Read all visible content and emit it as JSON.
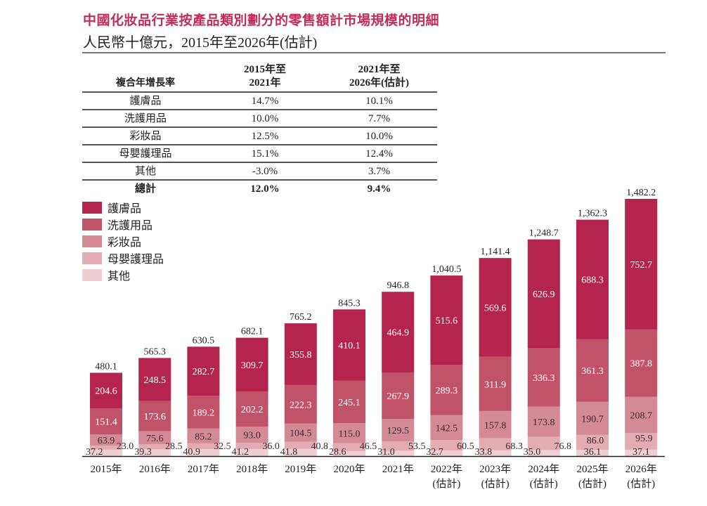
{
  "header": {
    "title": "中國化妝品行業按產品類別劃分的零售額計市場規模的明細",
    "subtitle": "人民幣十億元，2015年至2026年(估計)"
  },
  "cagr_table": {
    "header_label": "複合年增長率",
    "col1_line1": "2015年至",
    "col1_line2": "2021年",
    "col2_line1": "2021年至",
    "col2_line2": "2026年(估計)",
    "rows": [
      {
        "label": "護膚品",
        "c1": "14.7%",
        "c2": "10.1%"
      },
      {
        "label": "洗護用品",
        "c1": "10.0%",
        "c2": "7.7%"
      },
      {
        "label": "彩妝品",
        "c1": "12.5%",
        "c2": "10.0%"
      },
      {
        "label": "母嬰護理品",
        "c1": "15.1%",
        "c2": "12.4%"
      },
      {
        "label": "其他",
        "c1": "-3.0%",
        "c2": "3.7%"
      },
      {
        "label": "總計",
        "c1": "12.0%",
        "c2": "9.4%"
      }
    ]
  },
  "chart_data": {
    "type": "bar",
    "stacked": true,
    "title": "中國化妝品行業按產品類別劃分的零售額計市場規模的明細",
    "subtitle": "人民幣十億元，2015年至2026年(估計)",
    "xlabel": "",
    "ylabel": "人民幣十億元",
    "ylim": [
      0,
      1482.2
    ],
    "grid": false,
    "legend_position": "top-left",
    "categories": [
      "2015年",
      "2016年",
      "2017年",
      "2018年",
      "2019年",
      "2020年",
      "2021年",
      "2022年",
      "2023年",
      "2024年",
      "2025年",
      "2026年"
    ],
    "category_sublabels": [
      "",
      "",
      "",
      "",
      "",
      "",
      "",
      "(估計)",
      "(估計)",
      "(估計)",
      "(估計)",
      "(估計)"
    ],
    "series": [
      {
        "name": "其他",
        "color": "#efcfd3",
        "values": [
          37.2,
          39.3,
          40.9,
          41.2,
          41.8,
          28.6,
          31.0,
          32.7,
          33.8,
          35.0,
          36.1,
          37.1
        ]
      },
      {
        "name": "母嬰護理品",
        "color": "#e3abb3",
        "values": [
          23.0,
          28.5,
          32.5,
          36.0,
          40.8,
          46.5,
          53.5,
          60.5,
          68.3,
          76.8,
          86.0,
          95.9
        ]
      },
      {
        "name": "彩妝品",
        "color": "#d48a96",
        "values": [
          63.9,
          75.6,
          85.2,
          93.0,
          104.5,
          115.0,
          129.5,
          142.5,
          157.8,
          173.8,
          190.7,
          208.7
        ]
      },
      {
        "name": "洗護用品",
        "color": "#c0536a",
        "values": [
          151.4,
          173.6,
          189.2,
          202.2,
          222.3,
          245.1,
          267.9,
          289.3,
          311.9,
          336.3,
          361.3,
          387.8
        ]
      },
      {
        "name": "護膚品",
        "color": "#b4244e",
        "values": [
          204.6,
          248.5,
          282.7,
          309.7,
          355.8,
          410.1,
          464.9,
          515.6,
          569.6,
          626.9,
          688.3,
          752.7
        ]
      }
    ],
    "totals": [
      480.1,
      565.3,
      630.5,
      682.1,
      765.2,
      845.3,
      946.8,
      1040.5,
      1141.4,
      1248.7,
      1362.3,
      1482.2
    ],
    "total_labels": [
      "480.1",
      "565.3",
      "630.5",
      "682.1",
      "765.2",
      "845.3",
      "946.8",
      "1,040.5",
      "1,141.4",
      "1,248.7",
      "1,362.3",
      "1,482.2"
    ]
  },
  "legend": {
    "items": [
      {
        "label": "護膚品",
        "color": "#b4244e"
      },
      {
        "label": "洗護用品",
        "color": "#c0536a"
      },
      {
        "label": "彩妝品",
        "color": "#d48a96"
      },
      {
        "label": "母嬰護理品",
        "color": "#e3abb3"
      },
      {
        "label": "其他",
        "color": "#efcfd3"
      }
    ]
  }
}
